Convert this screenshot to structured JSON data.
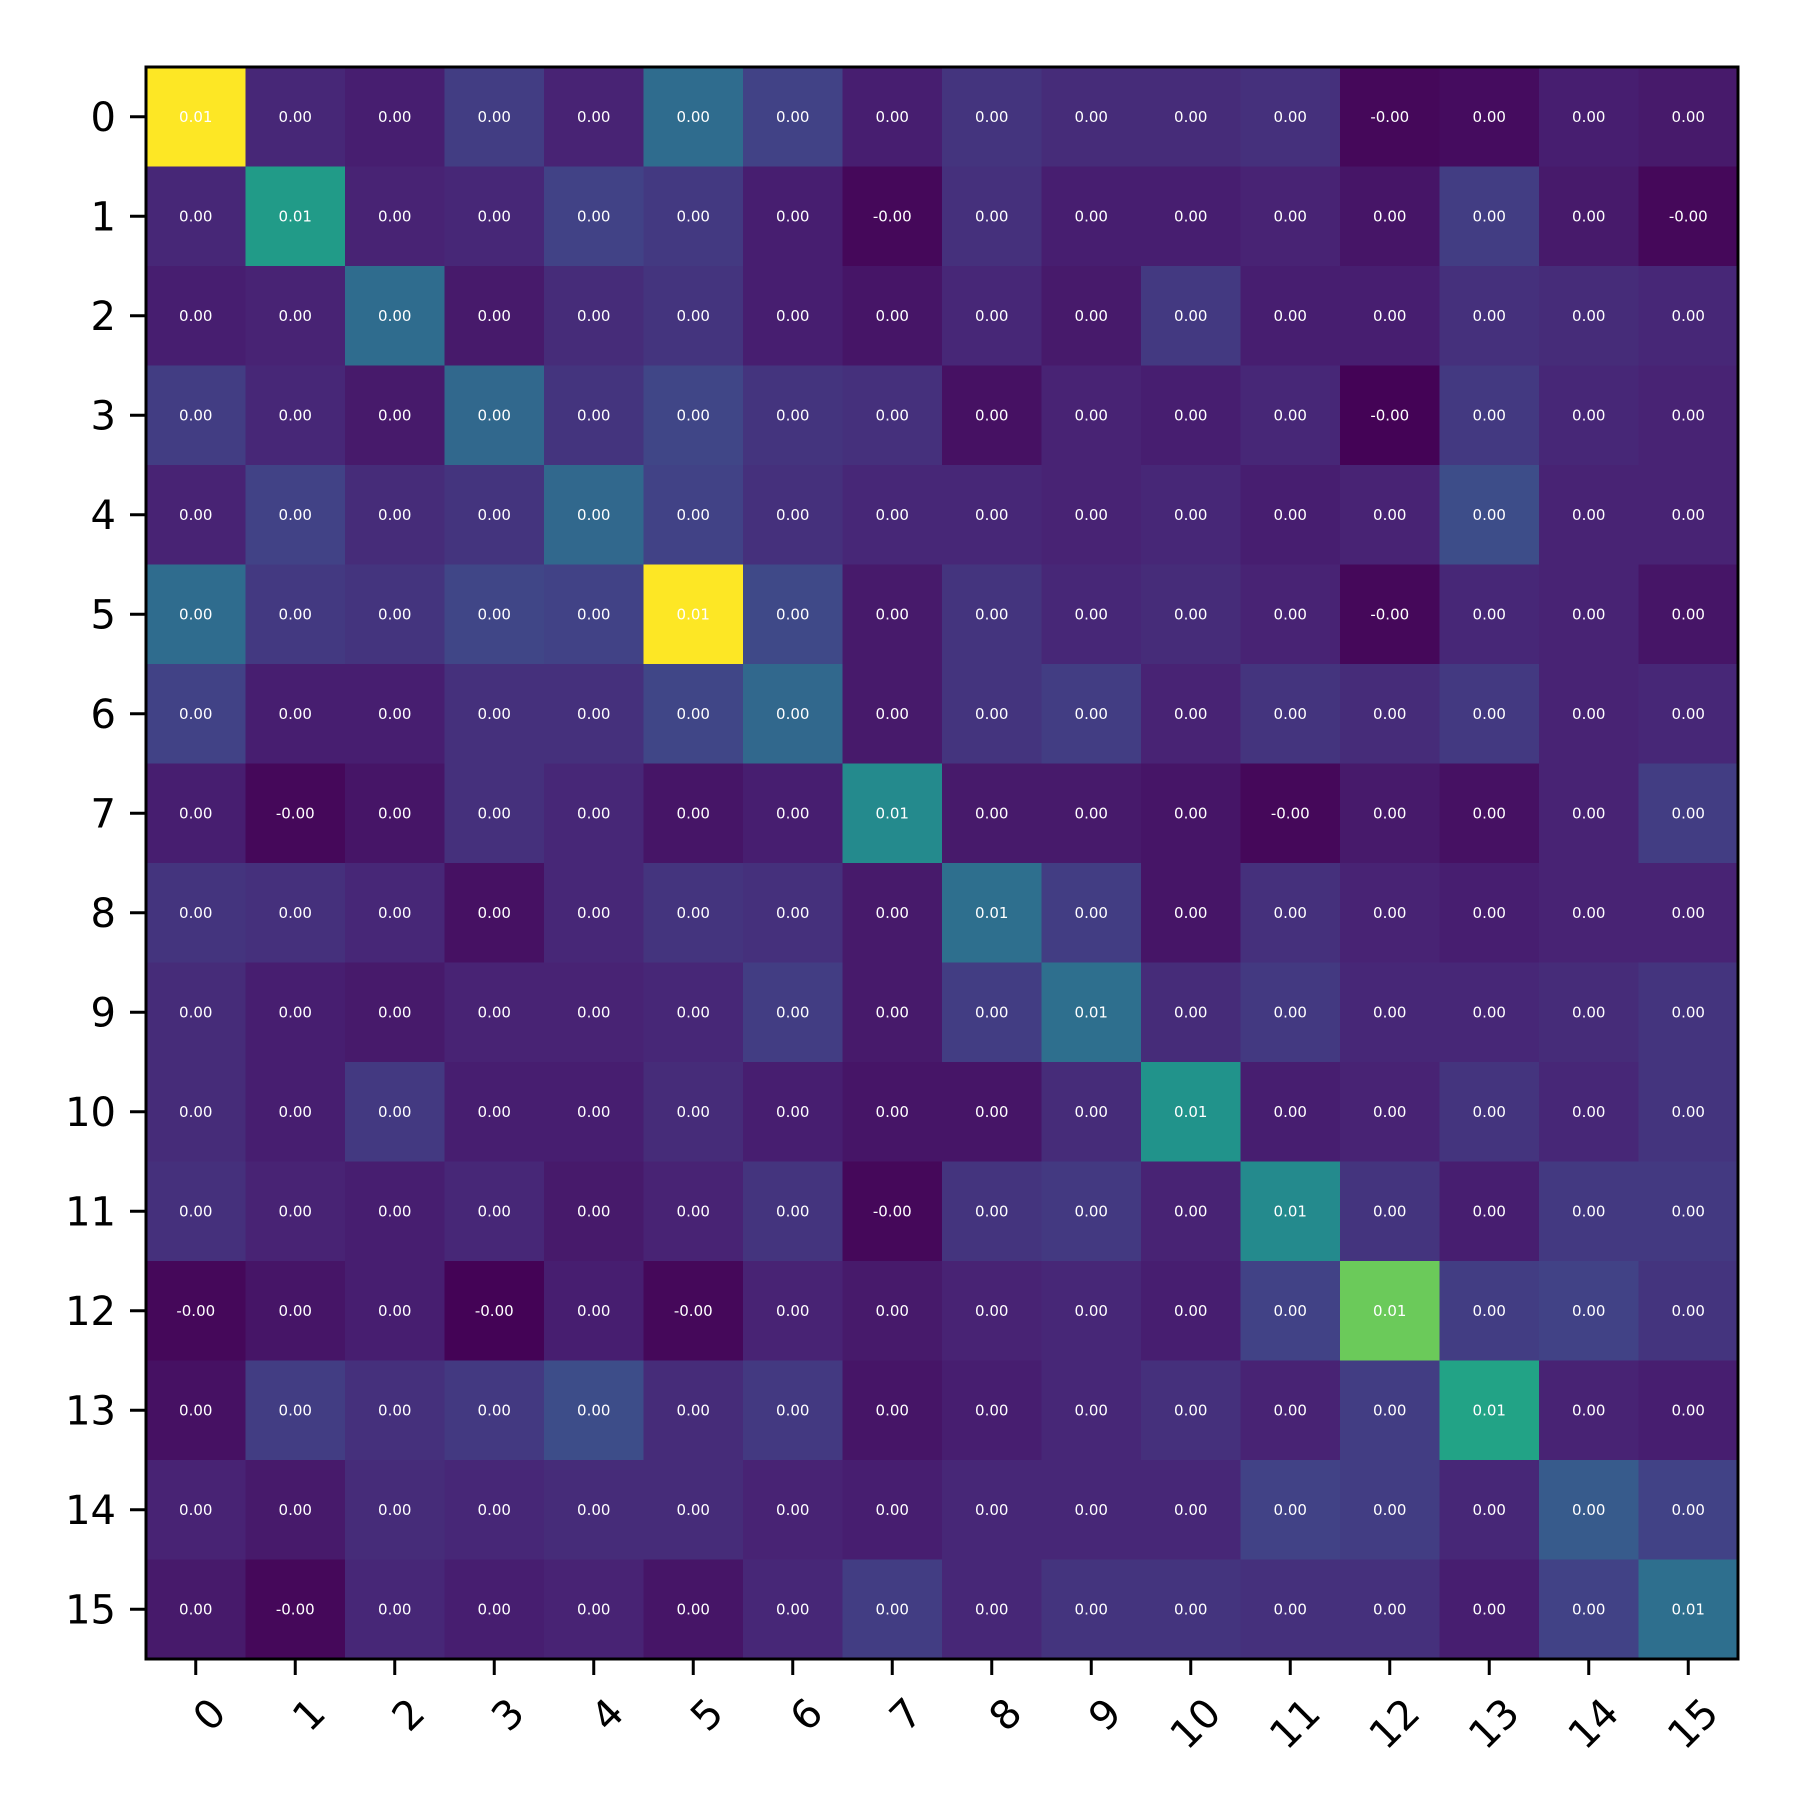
{
  "chart_data": {
    "type": "heatmap",
    "title": "",
    "xlabel": "",
    "ylabel": "",
    "colormap": "viridis",
    "color_range": [
      -0.0005,
      0.0115
    ],
    "x_categories": [
      "0",
      "1",
      "2",
      "3",
      "4",
      "5",
      "6",
      "7",
      "8",
      "9",
      "10",
      "11",
      "12",
      "13",
      "14",
      "15"
    ],
    "y_categories": [
      "0",
      "1",
      "2",
      "3",
      "4",
      "5",
      "6",
      "7",
      "8",
      "9",
      "10",
      "11",
      "12",
      "13",
      "14",
      "15"
    ],
    "values": [
      [
        0.0115,
        0.0012,
        0.0008,
        0.0022,
        0.001,
        0.0048,
        0.0024,
        0.0008,
        0.0018,
        0.0014,
        0.0014,
        0.0016,
        -0.0002,
        0.0,
        0.0008,
        0.0006
      ],
      [
        0.0012,
        0.0077,
        0.001,
        0.0012,
        0.0024,
        0.002,
        0.0008,
        -0.0002,
        0.0016,
        0.0008,
        0.0008,
        0.001,
        0.0004,
        0.0022,
        0.0006,
        -0.0002
      ],
      [
        0.0008,
        0.001,
        0.0048,
        0.0006,
        0.0014,
        0.0018,
        0.0008,
        0.0004,
        0.0012,
        0.0006,
        0.002,
        0.0008,
        0.0008,
        0.0016,
        0.0014,
        0.0012
      ],
      [
        0.0022,
        0.0012,
        0.0006,
        0.0046,
        0.0018,
        0.0026,
        0.0018,
        0.0016,
        0.0002,
        0.001,
        0.0008,
        0.0012,
        -0.0004,
        0.002,
        0.0012,
        0.001
      ],
      [
        0.001,
        0.0024,
        0.0014,
        0.0018,
        0.0046,
        0.0024,
        0.0016,
        0.0012,
        0.0012,
        0.001,
        0.0012,
        0.0008,
        0.001,
        0.003,
        0.001,
        0.001
      ],
      [
        0.0048,
        0.002,
        0.0018,
        0.0026,
        0.0024,
        0.0115,
        0.0028,
        0.0006,
        0.0018,
        0.0012,
        0.0014,
        0.001,
        -0.0002,
        0.0012,
        0.001,
        0.0004
      ],
      [
        0.0024,
        0.0008,
        0.0008,
        0.0016,
        0.0016,
        0.0026,
        0.0046,
        0.0006,
        0.0018,
        0.0022,
        0.001,
        0.0018,
        0.0014,
        0.002,
        0.001,
        0.0012
      ],
      [
        0.0008,
        -0.0002,
        0.0004,
        0.0016,
        0.0012,
        0.0004,
        0.0008,
        0.0066,
        0.0006,
        0.0006,
        0.0004,
        -0.0002,
        0.0006,
        0.0002,
        0.001,
        0.0022
      ],
      [
        0.0018,
        0.0016,
        0.0012,
        0.0002,
        0.0012,
        0.0018,
        0.0016,
        0.0006,
        0.005,
        0.0022,
        0.0004,
        0.0016,
        0.001,
        0.0008,
        0.001,
        0.001
      ],
      [
        0.0014,
        0.0008,
        0.0006,
        0.001,
        0.001,
        0.0012,
        0.0022,
        0.0006,
        0.0022,
        0.005,
        0.0014,
        0.002,
        0.0012,
        0.0012,
        0.0014,
        0.0018
      ],
      [
        0.0014,
        0.0008,
        0.002,
        0.0008,
        0.0008,
        0.0014,
        0.0008,
        0.0004,
        0.0004,
        0.0014,
        0.0072,
        0.0008,
        0.001,
        0.0018,
        0.0012,
        0.0018
      ],
      [
        0.0016,
        0.001,
        0.0008,
        0.0012,
        0.0006,
        0.001,
        0.0018,
        -0.0002,
        0.0018,
        0.002,
        0.001,
        0.0066,
        0.0018,
        0.0008,
        0.002,
        0.002
      ],
      [
        -0.0002,
        0.0004,
        0.0008,
        -0.0004,
        0.0008,
        -0.0002,
        0.001,
        0.0006,
        0.001,
        0.0012,
        0.0008,
        0.0024,
        0.0098,
        0.0022,
        0.0024,
        0.0018
      ],
      [
        0.0002,
        0.0022,
        0.0016,
        0.002,
        0.003,
        0.0014,
        0.002,
        0.0004,
        0.0008,
        0.0012,
        0.0016,
        0.001,
        0.0022,
        0.0082,
        0.001,
        0.0008
      ],
      [
        0.001,
        0.0006,
        0.0014,
        0.0012,
        0.0014,
        0.0014,
        0.001,
        0.0008,
        0.0012,
        0.0012,
        0.0012,
        0.0024,
        0.0022,
        0.0012,
        0.0038,
        0.0024
      ],
      [
        0.0006,
        -0.0002,
        0.0012,
        0.0008,
        0.001,
        0.0004,
        0.0012,
        0.0022,
        0.0012,
        0.0018,
        0.0018,
        0.0016,
        0.0016,
        0.0008,
        0.0024,
        0.005
      ]
    ],
    "value_format_decimals": 2,
    "grid": false,
    "legend": "none"
  }
}
